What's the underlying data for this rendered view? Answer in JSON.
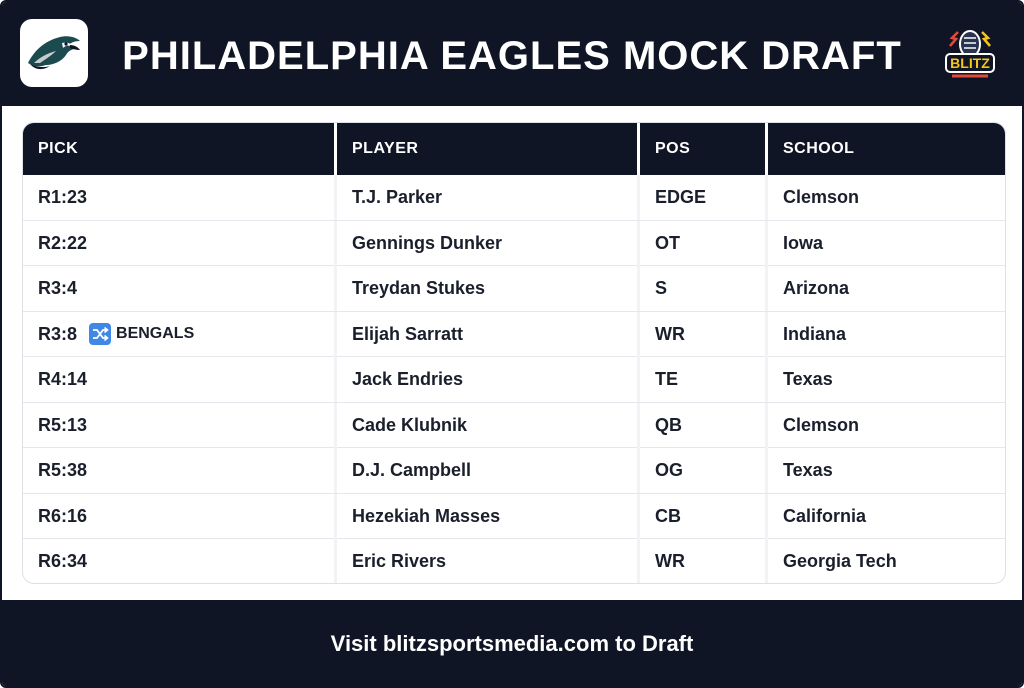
{
  "header": {
    "title": "PHILADELPHIA EAGLES MOCK DRAFT",
    "team_logo_icon": "eagle-head-icon",
    "brand_logo_icon": "blitz-logo-icon",
    "brand_logo_text": "BLITZ"
  },
  "table": {
    "columns": [
      "PICK",
      "PLAYER",
      "POS",
      "SCHOOL"
    ],
    "rows": [
      {
        "pick": "R1:23",
        "player": "T.J. Parker",
        "pos": "EDGE",
        "school": "Clemson"
      },
      {
        "pick": "R2:22",
        "player": "Gennings Dunker",
        "pos": "OT",
        "school": "Iowa"
      },
      {
        "pick": "R3:4",
        "player": "Treydan Stukes",
        "pos": "S",
        "school": "Arizona"
      },
      {
        "pick": "R3:8",
        "trade_icon": "shuffle-icon",
        "trade_note": "BENGALS",
        "player": "Elijah Sarratt",
        "pos": "WR",
        "school": "Indiana"
      },
      {
        "pick": "R4:14",
        "player": "Jack Endries",
        "pos": "TE",
        "school": "Texas"
      },
      {
        "pick": "R5:13",
        "player": "Cade Klubnik",
        "pos": "QB",
        "school": "Clemson"
      },
      {
        "pick": "R5:38",
        "player": "D.J. Campbell",
        "pos": "OG",
        "school": "Texas"
      },
      {
        "pick": "R6:16",
        "player": "Hezekiah Masses",
        "pos": "CB",
        "school": "California"
      },
      {
        "pick": "R6:34",
        "player": "Eric Rivers",
        "pos": "WR",
        "school": "Georgia Tech"
      }
    ]
  },
  "footer": {
    "text": "Visit blitzsportsmedia.com to Draft"
  },
  "colors": {
    "navy": "#0f1524",
    "trade_icon_blue": "#3f88e6",
    "eagle_green": "#1b4a4f"
  }
}
